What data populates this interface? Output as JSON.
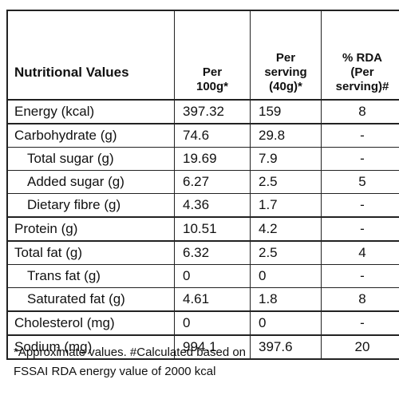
{
  "table": {
    "header": [
      [
        "Nutritional Values"
      ],
      [
        "Per",
        "100g*"
      ],
      [
        "Per",
        "serving",
        "(40g)*"
      ],
      [
        "% RDA",
        "(Per",
        "serving)#"
      ]
    ],
    "groups": [
      {
        "rows": [
          {
            "cells": [
              "Energy (kcal)",
              "397.32",
              "159",
              "8"
            ],
            "sub": false
          }
        ]
      },
      {
        "rows": [
          {
            "cells": [
              "Carbohydrate (g)",
              "74.6",
              "29.8",
              "-"
            ],
            "sub": false
          },
          {
            "cells": [
              "Total sugar (g)",
              "19.69",
              "7.9",
              "-"
            ],
            "sub": true
          },
          {
            "cells": [
              "Added sugar (g)",
              "6.27",
              "2.5",
              "5"
            ],
            "sub": true
          },
          {
            "cells": [
              "Dietary fibre (g)",
              "4.36",
              "1.7",
              "-"
            ],
            "sub": true
          }
        ]
      },
      {
        "rows": [
          {
            "cells": [
              "Protein (g)",
              "10.51",
              "4.2",
              "-"
            ],
            "sub": false
          }
        ]
      },
      {
        "rows": [
          {
            "cells": [
              "Total fat (g)",
              "6.32",
              "2.5",
              "4"
            ],
            "sub": false
          },
          {
            "cells": [
              "Trans fat (g)",
              "0",
              "0",
              "-"
            ],
            "sub": true
          },
          {
            "cells": [
              "Saturated fat (g)",
              "4.61",
              "1.8",
              "8"
            ],
            "sub": true
          }
        ]
      },
      {
        "rows": [
          {
            "cells": [
              "Cholesterol (mg)",
              "0",
              "0",
              "-"
            ],
            "sub": false
          }
        ]
      },
      {
        "rows": [
          {
            "cells": [
              "Sodium (mg)",
              "994.1",
              "397.6",
              "20"
            ],
            "sub": false
          }
        ]
      }
    ]
  },
  "footnote": [
    "*Approximate values. #Calculated based on",
    "FSSAI RDA energy value of 2000 kcal"
  ]
}
